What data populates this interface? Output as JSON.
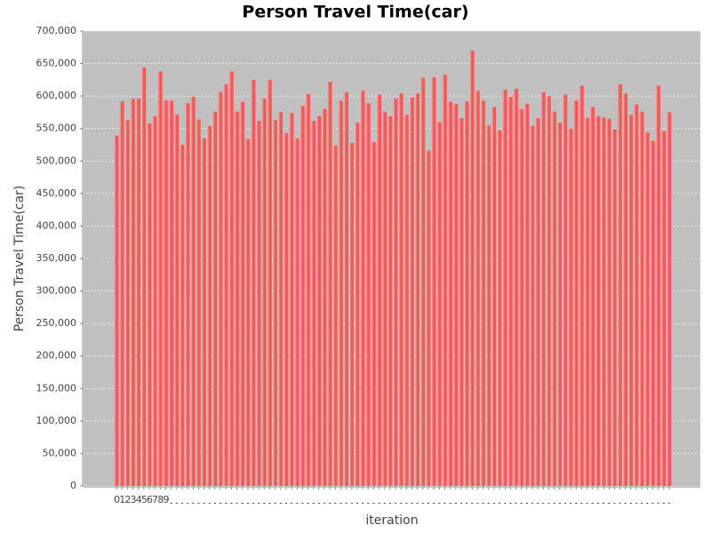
{
  "chart_data": {
    "type": "bar",
    "title": "Person Travel Time(car)",
    "x_label": "iteration",
    "y_label": "Person Travel Time(car)",
    "categories": [
      "0",
      "1",
      "2",
      "3",
      "4",
      "5",
      "6",
      "7",
      "8",
      "9",
      null,
      null,
      null,
      null,
      null,
      null,
      null,
      null,
      null,
      null,
      null,
      null,
      null,
      null,
      null,
      null,
      null,
      null,
      null,
      null,
      null,
      null,
      null,
      null,
      null,
      null,
      null,
      null,
      null,
      null,
      null,
      null,
      null,
      null,
      null,
      null,
      null,
      null,
      null,
      null,
      null,
      null,
      null,
      null,
      null,
      null,
      null,
      null,
      null,
      null,
      null,
      null,
      null,
      null,
      null,
      null,
      null,
      null,
      null,
      null,
      null,
      null,
      null,
      null,
      null,
      null,
      null,
      null,
      null,
      null,
      null,
      null,
      null,
      null,
      null,
      null,
      null,
      null,
      null,
      null,
      null,
      null,
      null,
      null,
      null,
      null,
      null,
      null,
      null,
      null,
      null,
      null
    ],
    "values": [
      539000,
      592000,
      563000,
      596000,
      596000,
      644000,
      558000,
      569000,
      638000,
      593000,
      593000,
      571000,
      525000,
      589000,
      599000,
      564000,
      535000,
      554000,
      576000,
      606000,
      618000,
      638000,
      576000,
      591000,
      534000,
      625000,
      562000,
      596000,
      625000,
      563000,
      575000,
      543000,
      574000,
      535000,
      585000,
      603000,
      562000,
      569000,
      580000,
      622000,
      524000,
      593000,
      606000,
      528000,
      559000,
      608000,
      589000,
      529000,
      602000,
      576000,
      569000,
      596000,
      604000,
      571000,
      598000,
      604000,
      628000,
      516000,
      629000,
      560000,
      633000,
      591000,
      588000,
      566000,
      592000,
      670000,
      608000,
      593000,
      555000,
      583000,
      547000,
      610000,
      599000,
      611000,
      580000,
      588000,
      554000,
      566000,
      606000,
      600000,
      576000,
      559000,
      602000,
      550000,
      593000,
      616000,
      566000,
      583000,
      569000,
      567000,
      565000,
      549000,
      618000,
      604000,
      571000,
      587000,
      576000,
      544000,
      531000,
      616000,
      546000,
      575000
    ],
    "color": "#ff5555",
    "ylim": [
      0,
      700000
    ],
    "yticks": [
      0,
      {
        "value": 50000,
        "label": "50,000"
      },
      {
        "value": 100000,
        "label": "100,000"
      },
      {
        "value": 150000,
        "label": "150,000"
      },
      {
        "value": 200000,
        "label": "200,000"
      },
      {
        "value": 250000,
        "label": "250,000"
      },
      {
        "value": 300000,
        "label": "300,000"
      },
      {
        "value": 350000,
        "label": "350,000"
      },
      {
        "value": 400000,
        "label": "400,000"
      },
      {
        "value": 450000,
        "label": "450,000"
      },
      {
        "value": 500000,
        "label": "500,000"
      },
      {
        "value": 550000,
        "label": "550,000"
      },
      {
        "value": 600000,
        "label": "600,000"
      },
      {
        "value": 650000,
        "label": "650,000"
      },
      {
        "value": 700000,
        "label": "700,000"
      }
    ],
    "grid": true
  }
}
